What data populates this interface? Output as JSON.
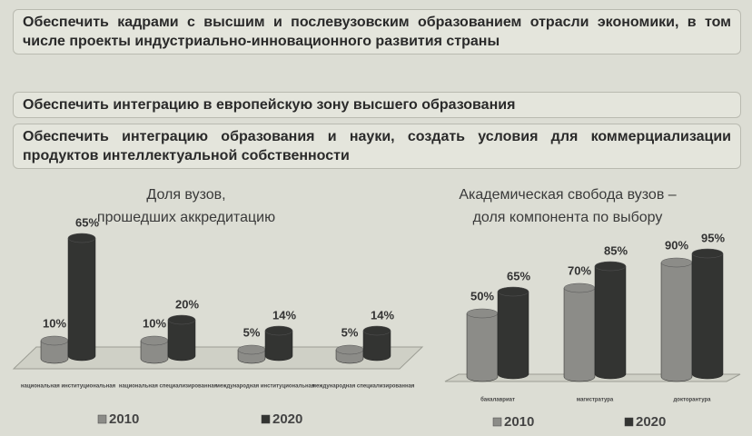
{
  "boxes": [
    "Обеспечить кадрами с высшим и послевузовским образованием отрасли экономики, в том числе проекты индустриально-инновационного развития страны",
    "Обеспечить интеграцию в европейскую зону высшего образования",
    "Обеспечить интеграцию образования и науки, создать условия для коммерциализации продуктов интеллектуальной собственности"
  ],
  "chart_data": [
    {
      "type": "bar3d",
      "title": [
        "Доля вузов,",
        "прошедших аккредитацию"
      ],
      "categories": [
        "национальная институциональная",
        "национальная специализированная",
        "международная институциональная",
        "международная специализированная"
      ],
      "series": [
        {
          "name": "2010",
          "color": "#8c8c88",
          "values": [
            10,
            10,
            5,
            5
          ],
          "value_labels": [
            "10%",
            "10%",
            "5%",
            "5%"
          ]
        },
        {
          "name": "2020",
          "color": "#333432",
          "values": [
            65,
            20,
            14,
            14
          ],
          "value_labels": [
            "65%",
            "20%",
            "14%",
            "14%"
          ]
        }
      ]
    },
    {
      "type": "bar3d",
      "title": [
        "Академическая свобода вузов –",
        "доля компонента по выбору"
      ],
      "categories": [
        "бакалавриат",
        "магистратура",
        "докторантура"
      ],
      "series": [
        {
          "name": "2010",
          "color": "#8c8c88",
          "values": [
            50,
            70,
            90
          ],
          "value_labels": [
            "50%",
            "70%",
            "90%"
          ]
        },
        {
          "name": "2020",
          "color": "#333432",
          "values": [
            65,
            85,
            95
          ],
          "value_labels": [
            "65%",
            "85%",
            "95%"
          ]
        }
      ]
    }
  ]
}
